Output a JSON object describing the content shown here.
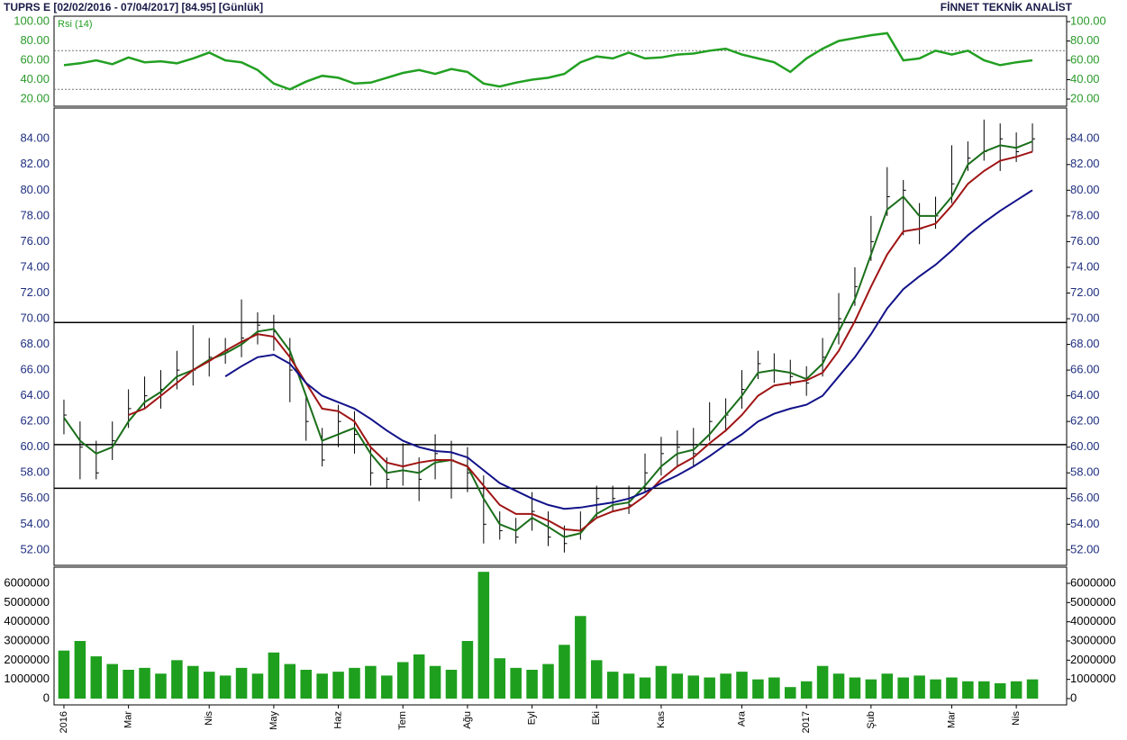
{
  "chart_data": [
    {
      "type": "line",
      "title": "TUPRS E  [02/02/2016 - 07/04/2017]  [84.95]  [Günlük]",
      "source": "FİNNET TEKNİK ANALİST",
      "series": [
        {
          "name": "Rsi (14)",
          "color": "#22a022",
          "values": [
            55,
            57,
            60,
            56,
            63,
            58,
            59,
            57,
            62,
            68,
            60,
            58,
            50,
            36,
            30,
            38,
            44,
            42,
            36,
            37,
            42,
            47,
            50,
            46,
            51,
            48,
            36,
            33,
            37,
            40,
            42,
            46,
            58,
            64,
            62,
            68,
            62,
            63,
            66,
            67,
            70,
            72,
            66,
            62,
            58,
            48,
            62,
            72,
            80,
            83,
            86,
            88,
            60,
            62,
            70,
            66,
            70,
            60,
            55,
            58,
            60
          ]
        }
      ],
      "ylim": [
        12.6,
        105.6
      ],
      "yticks": [
        {
          "value": 20,
          "label": "20.00"
        },
        {
          "value": 40,
          "label": "40.00"
        },
        {
          "value": 60,
          "label": "60.00"
        },
        {
          "value": 80,
          "label": "80.00"
        },
        {
          "value": 100,
          "label": "100.00"
        }
      ],
      "hlines": [
        70,
        30
      ]
    },
    {
      "type": "ohlc",
      "color": "#000000",
      "high": [
        63.7,
        62,
        60.5,
        62,
        64.5,
        65.5,
        66,
        67.5,
        69.5,
        68.5,
        68.5,
        71.5,
        70.5,
        70.3,
        68.5,
        64,
        61.5,
        63.3,
        62.8,
        60,
        59.2,
        60.3,
        59.2,
        61,
        60.5,
        60,
        57.8,
        55,
        54.5,
        56.5,
        55,
        53.9,
        55,
        57,
        57,
        57,
        59.5,
        60.8,
        61.3,
        61.5,
        63.5,
        63.8,
        66,
        67.5,
        67.3,
        66.8,
        66.3,
        68.5,
        72,
        74,
        78,
        81.8,
        80.8,
        79,
        79.5,
        83.5,
        83.8,
        85.5,
        85.2,
        84.5,
        85.2
      ],
      "low": [
        61,
        57.5,
        57.5,
        59,
        61.5,
        63,
        63,
        64.5,
        64.8,
        65.5,
        66.5,
        67,
        68,
        67.5,
        63.5,
        60.5,
        58.5,
        60,
        59.5,
        57,
        56.8,
        57,
        55.8,
        57.5,
        56,
        56.5,
        52.5,
        52.8,
        52.5,
        53.5,
        52.3,
        51.8,
        52.8,
        54.5,
        55,
        54.8,
        56.5,
        57.8,
        58.5,
        58.5,
        60.5,
        61.2,
        63,
        65.3,
        65,
        64.8,
        64,
        65.5,
        68,
        71,
        74.5,
        78,
        76.5,
        75.8,
        77,
        79,
        81.5,
        82.3,
        81.5,
        82.2,
        83
      ],
      "close": [
        62.5,
        60,
        58,
        60.5,
        63,
        64,
        64.5,
        66,
        66,
        67,
        67.5,
        68.5,
        69.5,
        69,
        66,
        62,
        59,
        62,
        61,
        58,
        57.5,
        58.5,
        57.5,
        59.5,
        59,
        58,
        54,
        53.5,
        53,
        55,
        53,
        52.5,
        53.5,
        56,
        56,
        55.5,
        58,
        59.5,
        60,
        59.5,
        62,
        62.5,
        64.5,
        66.5,
        66,
        65.5,
        65,
        67,
        70,
        72.5,
        76,
        79.5,
        80,
        77,
        78,
        80.5,
        82.5,
        83,
        84,
        83,
        84
      ],
      "series": [
        {
          "color": "#1a6e1a",
          "values": [
            62.3,
            60.5,
            59.5,
            60,
            62,
            63.5,
            64.3,
            65.5,
            66,
            66.8,
            67.3,
            68,
            69,
            69.2,
            67.5,
            64,
            60.5,
            61,
            61.5,
            59.5,
            58,
            58.2,
            58,
            58.8,
            59,
            58.5,
            56,
            54,
            53.5,
            54.5,
            53.8,
            53,
            53.3,
            54.8,
            55.5,
            55.7,
            57,
            58.5,
            59.5,
            59.8,
            61,
            62.5,
            64,
            65.8,
            66,
            65.8,
            65.3,
            66.5,
            69,
            71.5,
            75,
            78.5,
            79.5,
            78,
            78,
            79.5,
            82,
            83,
            83.5,
            83.3,
            83.8
          ]
        },
        {
          "color": "#a01414",
          "values": [
            null,
            null,
            null,
            null,
            62.5,
            63,
            64,
            65,
            66,
            66.7,
            67.5,
            68.2,
            68.8,
            68.6,
            67,
            65,
            63,
            62.8,
            62,
            60,
            58.8,
            58.5,
            58.8,
            59,
            59,
            58.5,
            57,
            55.5,
            54.8,
            54.8,
            54.3,
            53.6,
            53.5,
            54.5,
            55,
            55.3,
            56.2,
            57.5,
            58.5,
            59.2,
            60.3,
            61.3,
            62.5,
            64,
            64.8,
            65,
            65.2,
            65.8,
            67.5,
            69.8,
            72.5,
            75,
            76.8,
            77,
            77.4,
            78.8,
            80.5,
            81.5,
            82.3,
            82.6,
            83
          ]
        },
        {
          "color": "#12128a",
          "values": [
            null,
            null,
            null,
            null,
            null,
            null,
            null,
            null,
            null,
            null,
            65.5,
            66.3,
            67,
            67.2,
            66.5,
            65,
            64,
            63.5,
            63,
            62.2,
            61.3,
            60.5,
            60,
            59.7,
            59.6,
            59.2,
            58.2,
            57.2,
            56.6,
            56,
            55.5,
            55.2,
            55.3,
            55.5,
            55.7,
            56,
            56.5,
            57.2,
            57.8,
            58.5,
            59.3,
            60.2,
            61,
            62,
            62.6,
            63,
            63.3,
            64,
            65.5,
            67,
            68.8,
            70.8,
            72.3,
            73.3,
            74.2,
            75.3,
            76.5,
            77.5,
            78.4,
            79.2,
            80
          ]
        }
      ],
      "ylim": [
        50.8,
        86.4
      ],
      "yticks": [
        {
          "value": 52,
          "label": "52.00"
        },
        {
          "value": 54,
          "label": "54.00"
        },
        {
          "value": 56,
          "label": "56.00"
        },
        {
          "value": 58,
          "label": "58.00"
        },
        {
          "value": 60,
          "label": "60.00"
        },
        {
          "value": 62,
          "label": "62.00"
        },
        {
          "value": 64,
          "label": "64.00"
        },
        {
          "value": 66,
          "label": "66.00"
        },
        {
          "value": 68,
          "label": "68.00"
        },
        {
          "value": 70,
          "label": "70.00"
        },
        {
          "value": 72,
          "label": "72.00"
        },
        {
          "value": 74,
          "label": "74.00"
        },
        {
          "value": 76,
          "label": "76.00"
        },
        {
          "value": 78,
          "label": "78.00"
        },
        {
          "value": 80,
          "label": "80.00"
        },
        {
          "value": 82,
          "label": "82.00"
        },
        {
          "value": 84,
          "label": "84.00"
        }
      ],
      "hlines": [
        69.7,
        60.2,
        56.8
      ]
    },
    {
      "type": "bar",
      "color": "#1ea01e",
      "categories": [
        "2016",
        null,
        null,
        null,
        "Mar",
        null,
        null,
        null,
        null,
        "Nis",
        null,
        null,
        null,
        "May",
        null,
        null,
        null,
        "Haz",
        null,
        null,
        null,
        "Tem",
        null,
        null,
        null,
        "Ağu",
        null,
        null,
        null,
        "Eyl",
        null,
        null,
        null,
        "Eki",
        null,
        null,
        null,
        "Kas",
        null,
        null,
        null,
        null,
        "Ara",
        null,
        null,
        null,
        "2017",
        null,
        null,
        null,
        "Şub",
        null,
        null,
        null,
        null,
        "Mar",
        null,
        null,
        null,
        "Nis",
        null
      ],
      "values": [
        2500000,
        3000000,
        2200000,
        1800000,
        1500000,
        1600000,
        1300000,
        2000000,
        1700000,
        1400000,
        1200000,
        1600000,
        1300000,
        2400000,
        1800000,
        1500000,
        1300000,
        1400000,
        1600000,
        1700000,
        1200000,
        1900000,
        2300000,
        1700000,
        1500000,
        3000000,
        6600000,
        2100000,
        1600000,
        1500000,
        1800000,
        2800000,
        4300000,
        2000000,
        1400000,
        1300000,
        1100000,
        1700000,
        1300000,
        1200000,
        1100000,
        1300000,
        1400000,
        1000000,
        1100000,
        600000,
        900000,
        1700000,
        1300000,
        1100000,
        1000000,
        1300000,
        1100000,
        1200000,
        1000000,
        1100000,
        900000,
        900000,
        800000,
        900000,
        1000000
      ],
      "ylim": [
        0,
        6750000
      ],
      "yticks": [
        0,
        1000000,
        2000000,
        3000000,
        4000000,
        5000000,
        6000000
      ]
    }
  ]
}
